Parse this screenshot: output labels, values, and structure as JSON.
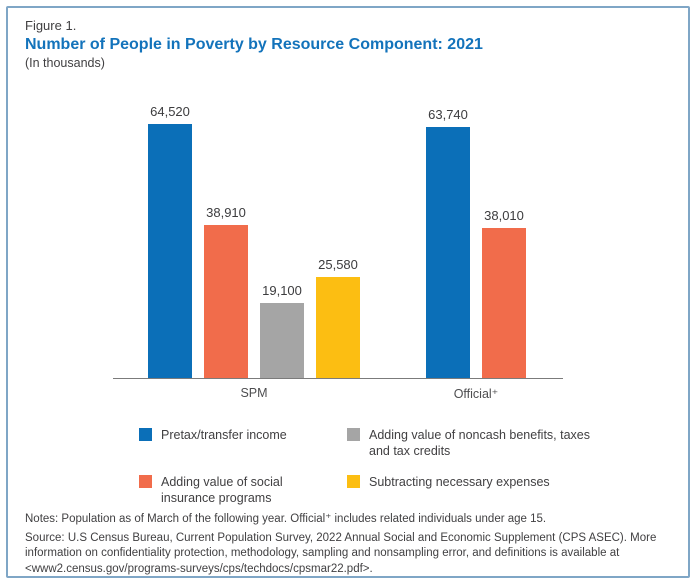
{
  "figure": {
    "number": "Figure 1.",
    "title": "Number of People in Poverty by Resource Component: 2021",
    "subtitle": "(In thousands)"
  },
  "chart_data": {
    "type": "bar",
    "title": "Number of People in Poverty by Resource Component: 2021",
    "subtitle": "(In thousands)",
    "categories": [
      "SPM",
      "Official⁺"
    ],
    "series": [
      {
        "name": "Pretax/transfer income",
        "color": "#0B6FB8",
        "values": [
          64520,
          63740
        ],
        "labels": [
          "64,520",
          "63,740"
        ]
      },
      {
        "name": "Adding value of social insurance programs",
        "color": "#F16C4B",
        "values": [
          38910,
          38010
        ],
        "labels": [
          "38,910",
          "38,010"
        ]
      },
      {
        "name": "Adding value of noncash benefits, taxes and tax credits",
        "color": "#A5A5A5",
        "values": [
          19100,
          null
        ],
        "labels": [
          "19,100",
          null
        ]
      },
      {
        "name": "Subtracting necessary expenses",
        "color": "#FCBE12",
        "values": [
          25580,
          null
        ],
        "labels": [
          "25,580",
          null
        ]
      }
    ],
    "ylim": [
      0,
      70000
    ],
    "grid": false,
    "legend_position": "bottom",
    "data_labels": true
  },
  "legend": {
    "items": [
      {
        "label": "Pretax/transfer income",
        "color": "#0B6FB8"
      },
      {
        "label": "Adding value of noncash benefits, taxes and tax credits",
        "color": "#A5A5A5"
      },
      {
        "label": "Adding value of social insurance programs",
        "color": "#F16C4B"
      },
      {
        "label": "Subtracting necessary expenses",
        "color": "#FCBE12"
      }
    ]
  },
  "notes": {
    "notes_line": "Notes: Population as of March of the following year. Official⁺ includes related individuals under age 15.",
    "source_line": "Source: U.S Census Bureau, Current Population Survey, 2022 Annual Social and Economic Supplement (CPS ASEC). More information on confidentiality protection, methodology, sampling and nonsampling error, and definitions is available at <www2.census.gov/programs-surveys/cps/techdocs/cpsmar22.pdf>."
  }
}
